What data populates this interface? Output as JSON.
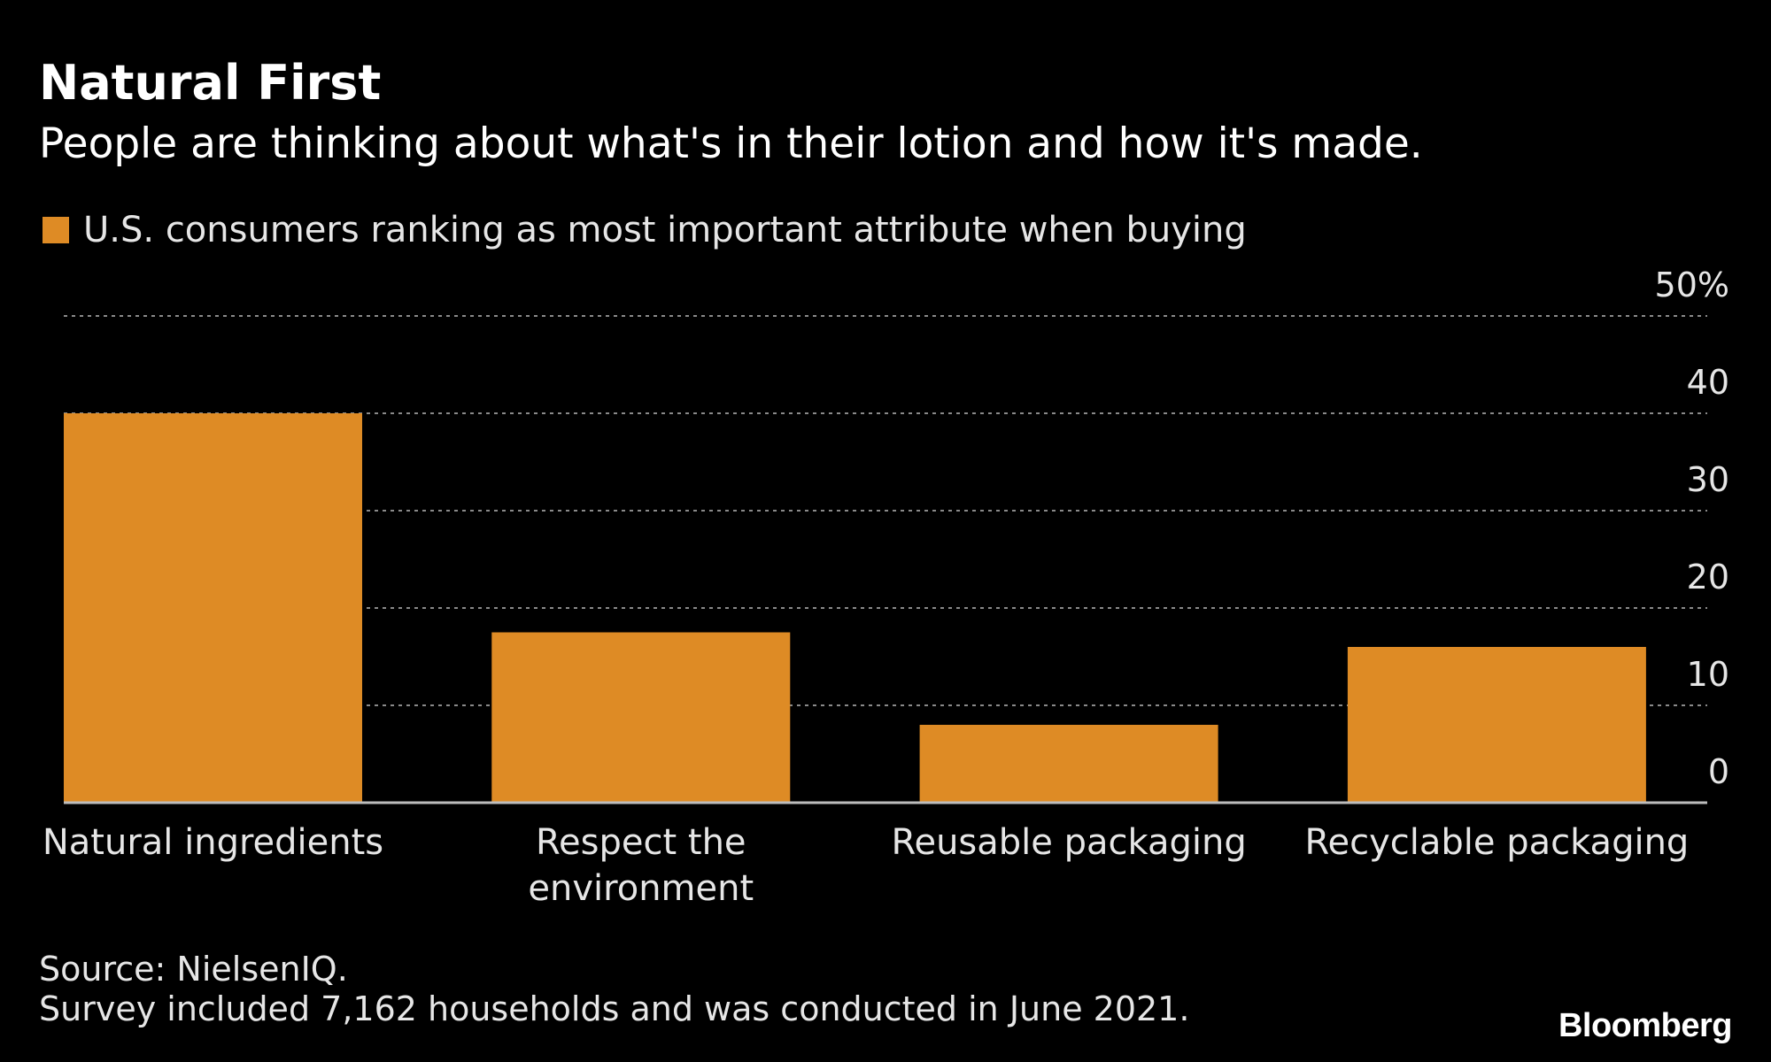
{
  "header": {
    "title": "Natural First",
    "subtitle": "People are thinking about what's in their lotion and how it's made."
  },
  "legend": {
    "label": "U.S. consumers ranking as most important attribute when buying",
    "color": "#de8b25"
  },
  "footer": {
    "source": "Source: NielsenIQ.",
    "note": "Survey included 7,162 households and was conducted in June 2021.",
    "brand": "Bloomberg"
  },
  "colors": {
    "background": "#000000",
    "bar": "#de8b25",
    "grid": "#8a8a8a",
    "text": "#ffffff",
    "secondary_text": "#e6e6e6"
  },
  "chart_data": {
    "type": "bar",
    "title": "Natural First",
    "subtitle": "People are thinking about what's in their lotion and how it's made.",
    "categories": [
      [
        "Natural ingredients"
      ],
      [
        "Respect the",
        "environment"
      ],
      [
        "Reusable packaging"
      ],
      [
        "Recyclable packaging"
      ]
    ],
    "series": [
      {
        "name": "U.S. consumers ranking as most important attribute when buying",
        "values": [
          40,
          17.5,
          8,
          16
        ]
      }
    ],
    "ylim": [
      0,
      50
    ],
    "yticks": [
      0,
      10,
      20,
      30,
      40,
      50
    ],
    "ytick_labels": [
      "0",
      "10",
      "20",
      "30",
      "40",
      "50%"
    ],
    "xlabel": "",
    "ylabel": "",
    "grid": true,
    "legend_position": "top-left",
    "y_axis_side": "right"
  }
}
